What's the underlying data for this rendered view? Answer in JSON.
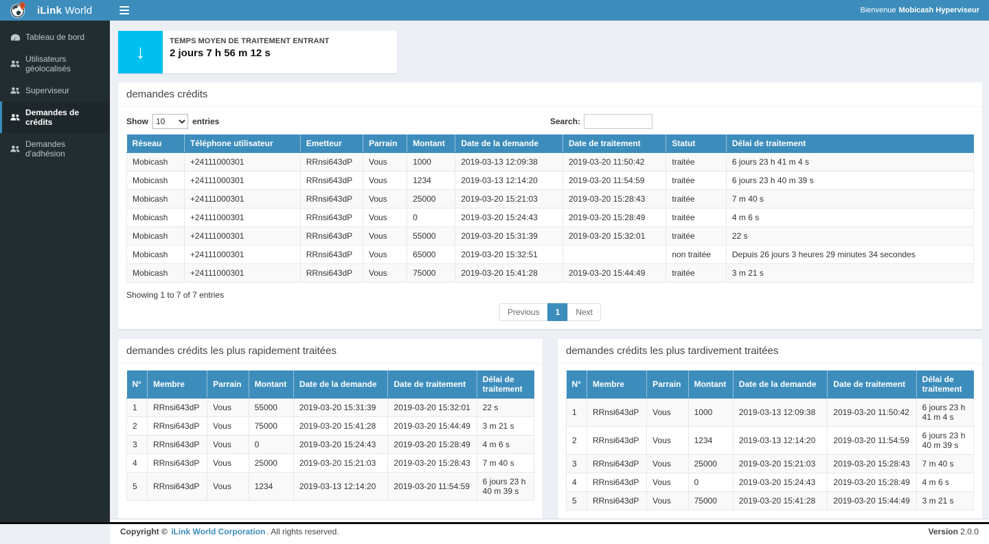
{
  "colors": {
    "accent": "#3c8dbc",
    "info_cyan": "#00c0ef",
    "sidebar_bg": "#222d32",
    "content_bg": "#ecf0f5"
  },
  "brand": {
    "bold": "iLink",
    "light": "World"
  },
  "navbar": {
    "welcome_prefix": "Bienvenue",
    "welcome_user": "Mobicash Hyperviseur"
  },
  "sidebar": {
    "items": [
      {
        "label": "Tableau de bord",
        "icon": "dashboard-icon",
        "active": false
      },
      {
        "label": "Utilisateurs géolocalisés",
        "icon": "users-icon",
        "active": false
      },
      {
        "label": "Superviseur",
        "icon": "users-icon",
        "active": false
      },
      {
        "label": "Demandes de crédits",
        "icon": "users-icon",
        "active": true
      },
      {
        "label": "Demandes d'adhésion",
        "icon": "users-icon",
        "active": false
      }
    ]
  },
  "infobox": {
    "icon": "arrow-down-icon",
    "arrow_glyph": "↓",
    "label": "TEMPS MOYEN DE TRAITEMENT ENTRANT",
    "value": "2 jours 7 h 56 m 12 s"
  },
  "credits_panel": {
    "title": "demandes crédits",
    "show_label": "Show",
    "page_size": "10",
    "entries_label": "entries",
    "search_label": "Search:",
    "search_value": "",
    "columns": [
      "Réseau",
      "Téléphone utilisateur",
      "Emetteur",
      "Parrain",
      "Montant",
      "Date de la demande",
      "Date de traitement",
      "Statut",
      "Délai de traitement"
    ],
    "rows": [
      [
        "Mobicash",
        "+24111000301",
        "RRnsi643dP",
        "Vous",
        "1000",
        "2019-03-13 12:09:38",
        "2019-03-20 11:50:42",
        "traitée",
        "6 jours 23 h 41 m 4 s"
      ],
      [
        "Mobicash",
        "+24111000301",
        "RRnsi643dP",
        "Vous",
        "1234",
        "2019-03-13 12:14:20",
        "2019-03-20 11:54:59",
        "traitée",
        "6 jours 23 h 40 m 39 s"
      ],
      [
        "Mobicash",
        "+24111000301",
        "RRnsi643dP",
        "Vous",
        "25000",
        "2019-03-20 15:21:03",
        "2019-03-20 15:28:43",
        "traitée",
        "7 m 40 s"
      ],
      [
        "Mobicash",
        "+24111000301",
        "RRnsi643dP",
        "Vous",
        "0",
        "2019-03-20 15:24:43",
        "2019-03-20 15:28:49",
        "traitée",
        "4 m 6 s"
      ],
      [
        "Mobicash",
        "+24111000301",
        "RRnsi643dP",
        "Vous",
        "55000",
        "2019-03-20 15:31:39",
        "2019-03-20 15:32:01",
        "traitée",
        "22 s"
      ],
      [
        "Mobicash",
        "+24111000301",
        "RRnsi643dP",
        "Vous",
        "65000",
        "2019-03-20 15:32:51",
        "",
        "non traitée",
        "Depuis 26 jours 3 heures 29 minutes 34 secondes"
      ],
      [
        "Mobicash",
        "+24111000301",
        "RRnsi643dP",
        "Vous",
        "75000",
        "2019-03-20 15:41:28",
        "2019-03-20 15:44:49",
        "traitée",
        "3 m 21 s"
      ]
    ],
    "summary": "Showing 1 to 7 of 7 entries",
    "pagination": {
      "previous": "Previous",
      "page": "1",
      "next": "Next"
    }
  },
  "fastest_panel": {
    "title": "demandes crédits les plus rapidement traitées",
    "columns": [
      "N°",
      "Membre",
      "Parrain",
      "Montant",
      "Date de la demande",
      "Date de traitement",
      "Délai de traitement"
    ],
    "rows": [
      [
        "1",
        "RRnsi643dP",
        "Vous",
        "55000",
        "2019-03-20 15:31:39",
        "2019-03-20 15:32:01",
        "22 s"
      ],
      [
        "2",
        "RRnsi643dP",
        "Vous",
        "75000",
        "2019-03-20 15:41:28",
        "2019-03-20 15:44:49",
        "3 m 21 s"
      ],
      [
        "3",
        "RRnsi643dP",
        "Vous",
        "0",
        "2019-03-20 15:24:43",
        "2019-03-20 15:28:49",
        "4 m 6 s"
      ],
      [
        "4",
        "RRnsi643dP",
        "Vous",
        "25000",
        "2019-03-20 15:21:03",
        "2019-03-20 15:28:43",
        "7 m 40 s"
      ],
      [
        "5",
        "RRnsi643dP",
        "Vous",
        "1234",
        "2019-03-13 12:14:20",
        "2019-03-20 11:54:59",
        "6 jours 23 h 40 m 39 s"
      ]
    ]
  },
  "latest_panel": {
    "title": "demandes crédits les plus tardivement traitées",
    "columns": [
      "N°",
      "Membre",
      "Parrain",
      "Montant",
      "Date de la demande",
      "Date de traitement",
      "Délai de traitement"
    ],
    "rows": [
      [
        "1",
        "RRnsi643dP",
        "Vous",
        "1000",
        "2019-03-13 12:09:38",
        "2019-03-20 11:50:42",
        "6 jours 23 h 41 m 4 s"
      ],
      [
        "2",
        "RRnsi643dP",
        "Vous",
        "1234",
        "2019-03-13 12:14:20",
        "2019-03-20 11:54:59",
        "6 jours 23 h 40 m 39 s"
      ],
      [
        "3",
        "RRnsi643dP",
        "Vous",
        "25000",
        "2019-03-20 15:21:03",
        "2019-03-20 15:28:43",
        "7 m 40 s"
      ],
      [
        "4",
        "RRnsi643dP",
        "Vous",
        "0",
        "2019-03-20 15:24:43",
        "2019-03-20 15:28:49",
        "4 m 6 s"
      ],
      [
        "5",
        "RRnsi643dP",
        "Vous",
        "75000",
        "2019-03-20 15:41:28",
        "2019-03-20 15:44:49",
        "3 m 21 s"
      ]
    ]
  },
  "footer": {
    "copyright_prefix": "Copyright ©",
    "company": "iLink World Corporation",
    "rights_suffix": ". All rights reserved.",
    "version_label": "Version",
    "version_value": "2.0.0"
  }
}
